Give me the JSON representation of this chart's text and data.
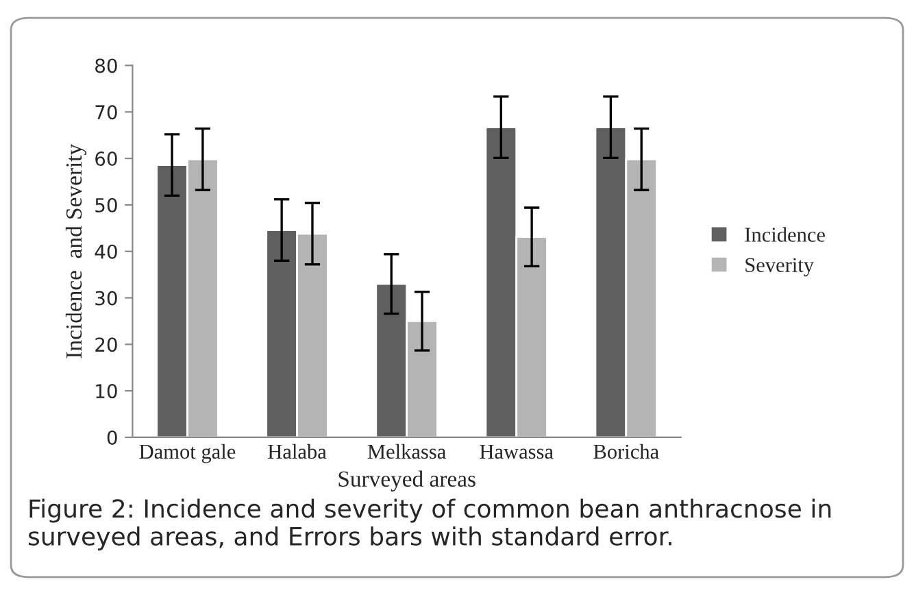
{
  "chart_data": {
    "type": "bar",
    "xlabel": "Surveyed areas",
    "ylabel": "Incidence  and Severity",
    "categories": [
      "Damot gale",
      "Halaba",
      "Melkassa",
      "Hawassa",
      "Boricha"
    ],
    "series": [
      {
        "name": "Incidence",
        "color": "#5f5f5f",
        "values": [
          58.6,
          44.6,
          33.0,
          66.7,
          66.7
        ],
        "errors": [
          6.6,
          6.6,
          6.4,
          6.6,
          6.6
        ]
      },
      {
        "name": "Severity",
        "color": "#b4b4b4",
        "values": [
          59.8,
          43.8,
          25.0,
          43.1,
          59.8
        ],
        "errors": [
          6.6,
          6.6,
          6.3,
          6.3,
          6.6
        ]
      }
    ],
    "ylim": [
      0,
      80
    ],
    "yticks": [
      0,
      10,
      20,
      30,
      40,
      50,
      60,
      70,
      80
    ],
    "grid": false,
    "legend": "right",
    "annotations": [
      "Figure 2: Incidence and severity of common bean anthracnose in surveyed areas, and Errors bars with standard error."
    ]
  }
}
